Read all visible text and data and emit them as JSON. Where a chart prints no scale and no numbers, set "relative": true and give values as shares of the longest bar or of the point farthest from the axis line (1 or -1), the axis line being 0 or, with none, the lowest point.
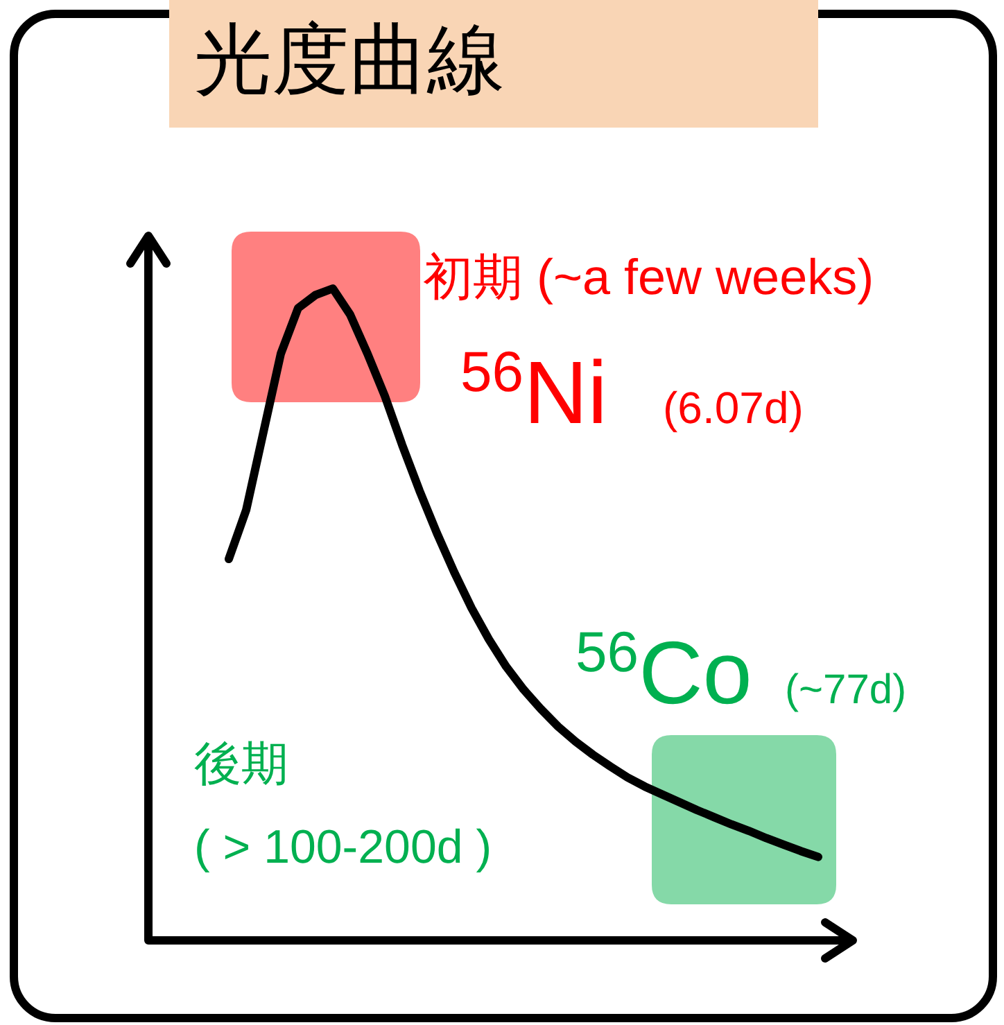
{
  "chart_data": {
    "type": "line",
    "title": "光度曲線",
    "relative": true,
    "categories": [
      null,
      null,
      null,
      null,
      null,
      null,
      null,
      null,
      null,
      null,
      null,
      null,
      null,
      null,
      null,
      null,
      null,
      null,
      null,
      null,
      null,
      null,
      null,
      null,
      null,
      null,
      null,
      null,
      null,
      null,
      null,
      null,
      null,
      null,
      null
    ],
    "series": [
      {
        "color": "#000000",
        "values": [
          0.585,
          0.66,
          0.78,
          0.9,
          0.97,
          0.99,
          1,
          0.96,
          0.9,
          0.835,
          0.76,
          0.69,
          0.625,
          0.565,
          0.51,
          0.462,
          0.42,
          0.385,
          0.355,
          0.328,
          0.305,
          0.285,
          0.267,
          0.25,
          0.236,
          0.224,
          0.212,
          0.2,
          0.189,
          0.178,
          0.168,
          0.157,
          0.147,
          0.137,
          0.128
        ]
      }
    ],
    "annotations": [
      "初期 (~a few weeks)",
      "$^{56}$Ni",
      "(6.07d)",
      "$^{56}$Co",
      "(~77d)",
      "後期",
      "( > 100-200d )"
    ]
  }
}
